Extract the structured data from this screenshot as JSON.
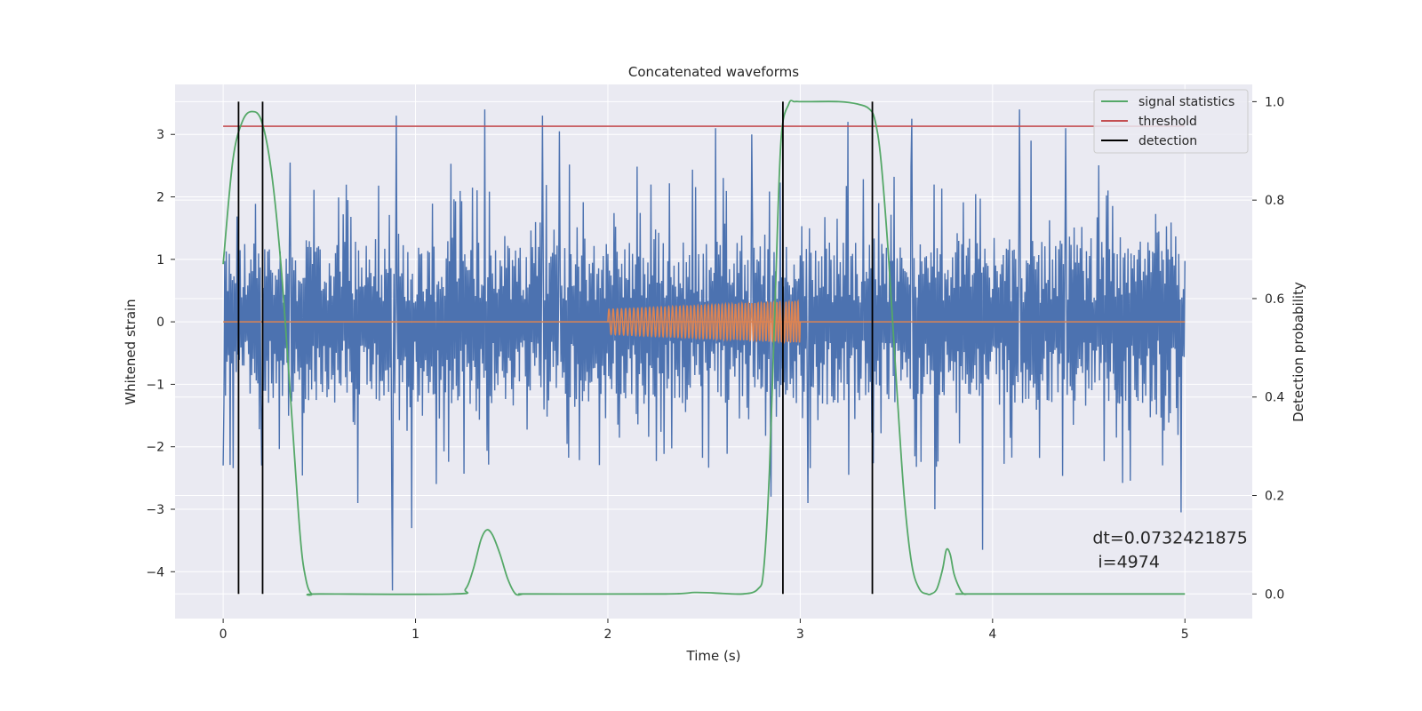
{
  "chart_data": {
    "type": "line",
    "title": "Concatenated waveforms",
    "xlabel": "Time (s)",
    "ylabel": "Whitened strain",
    "y2label": "Detection probability",
    "xlim": [
      -0.25,
      5.35
    ],
    "ylim": [
      -4.75,
      3.8
    ],
    "y2lim": [
      -0.05,
      1.035
    ],
    "xticks": [
      0,
      1,
      2,
      3,
      4,
      5
    ],
    "yticks": [
      -4,
      -3,
      -2,
      -1,
      0,
      1,
      2,
      3
    ],
    "y2ticks": [
      0.0,
      0.2,
      0.4,
      0.6,
      0.8,
      1.0
    ],
    "y2tick_labels": [
      "0.0",
      "0.2",
      "0.4",
      "0.6",
      "0.8",
      "1.0"
    ],
    "grid": true,
    "legend_position": "top-right",
    "colors": {
      "strain": "#4c72b0",
      "template": "#dd8452",
      "signal": "#55a868",
      "threshold": "#c44e52",
      "detection": "#000000",
      "panel": "#eaeaf2",
      "grid": "#ffffff"
    },
    "series": [
      {
        "name": "signal statistics",
        "axis": "right",
        "x": [
          0,
          0.05,
          0.1,
          0.15,
          0.2,
          0.25,
          0.3,
          0.35,
          0.4,
          0.43,
          0.46,
          0.5,
          1.2,
          1.26,
          1.3,
          1.34,
          1.37,
          1.4,
          1.44,
          1.48,
          1.52,
          1.56,
          1.6,
          2.3,
          2.45,
          2.55,
          2.7,
          2.78,
          2.81,
          2.84,
          2.87,
          2.9,
          2.94,
          2.97,
          3.0,
          3.05,
          3.2,
          3.3,
          3.36,
          3.39,
          3.42,
          3.46,
          3.5,
          3.54,
          3.58,
          3.62,
          3.66,
          3.68,
          3.71,
          3.74,
          3.76,
          3.78,
          3.8,
          3.83,
          3.85,
          3.87,
          3.9,
          5.0
        ],
        "values": [
          0.67,
          0.88,
          0.96,
          0.98,
          0.96,
          0.86,
          0.67,
          0.4,
          0.12,
          0.03,
          0.0,
          0.0,
          0.0,
          0.01,
          0.05,
          0.11,
          0.13,
          0.12,
          0.08,
          0.03,
          0.0,
          0.0,
          0.0,
          0.0,
          0.003,
          0.002,
          0.0,
          0.01,
          0.05,
          0.25,
          0.6,
          0.92,
          0.995,
          1.0,
          1.0,
          1.0,
          1.0,
          0.995,
          0.985,
          0.96,
          0.88,
          0.68,
          0.43,
          0.2,
          0.06,
          0.01,
          0.0,
          0.0,
          0.01,
          0.05,
          0.09,
          0.08,
          0.04,
          0.01,
          0.0,
          0.0,
          0.0,
          0.0
        ]
      },
      {
        "name": "threshold",
        "axis": "right",
        "x": [
          0,
          5
        ],
        "values": [
          0.95,
          0.95
        ]
      },
      {
        "name": "detection",
        "axis": "right",
        "x": [
          0.08,
          0.205,
          2.91,
          3.375
        ],
        "ymin": 0.0,
        "ymax": 1.0
      }
    ],
    "strain_band": {
      "x_range": [
        0,
        5
      ],
      "core_band": [
        -1.3,
        1.3
      ],
      "sample_step": 0.004,
      "spikes": [
        {
          "x": 0.0,
          "y": -2.3
        },
        {
          "x": 0.2,
          "y": -2.3
        },
        {
          "x": 0.35,
          "y": 2.55
        },
        {
          "x": 0.7,
          "y": -2.9
        },
        {
          "x": 0.88,
          "y": -4.3
        },
        {
          "x": 0.9,
          "y": 3.3
        },
        {
          "x": 0.98,
          "y": -3.3
        },
        {
          "x": 1.36,
          "y": 3.4
        },
        {
          "x": 1.66,
          "y": 3.3
        },
        {
          "x": 1.75,
          "y": 3.05
        },
        {
          "x": 2.56,
          "y": 3.1
        },
        {
          "x": 2.75,
          "y": 3.0
        },
        {
          "x": 2.85,
          "y": -2.8
        },
        {
          "x": 3.04,
          "y": -2.9
        },
        {
          "x": 3.25,
          "y": 3.2
        },
        {
          "x": 3.58,
          "y": 3.25
        },
        {
          "x": 3.7,
          "y": -3.0
        },
        {
          "x": 3.95,
          "y": -3.65
        },
        {
          "x": 4.14,
          "y": 3.4
        },
        {
          "x": 4.2,
          "y": 2.9
        },
        {
          "x": 4.38,
          "y": 3.1
        },
        {
          "x": 4.98,
          "y": -3.05
        }
      ]
    },
    "template_chirp": {
      "flat_x": [
        0,
        5
      ],
      "flat_y": 0,
      "chirp_x_range": [
        2.0,
        3.0
      ],
      "amplitude_start": 0.2,
      "amplitude_end": 0.33,
      "cycles": 50
    },
    "legend": [
      {
        "label": "signal statistics",
        "color": "#55a868"
      },
      {
        "label": "threshold",
        "color": "#c44e52"
      },
      {
        "label": "detection",
        "color": "#000000"
      }
    ],
    "annotation": {
      "line1": "dt=0.0732421875",
      "line2": " i=4974",
      "x": 4.52,
      "y": -3.55
    }
  }
}
